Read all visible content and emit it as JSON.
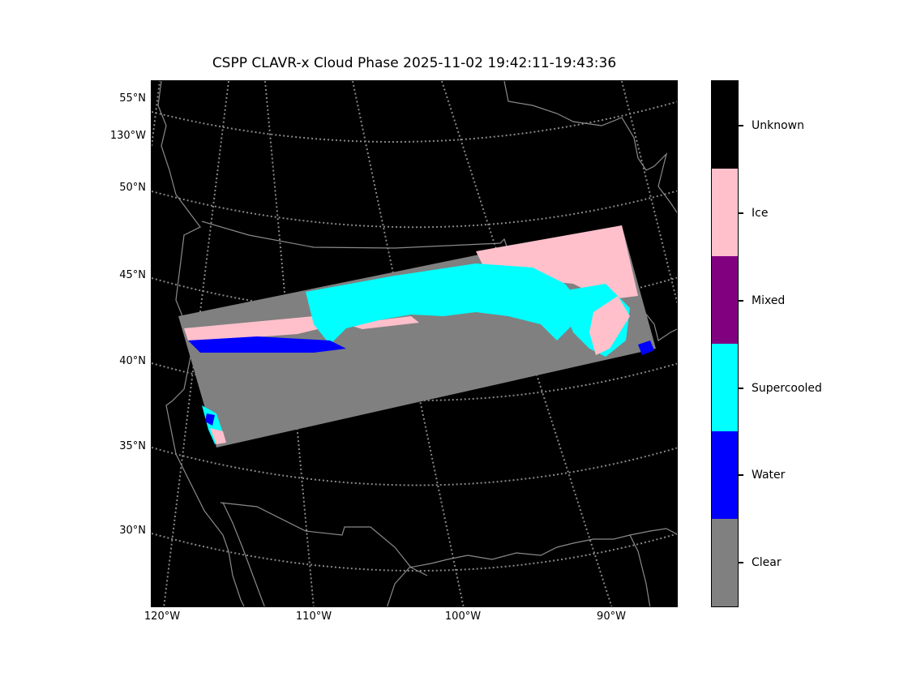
{
  "title": "CSPP CLAVR-x Cloud Phase 2025-11-02 19:42:11-19:43:36",
  "lat_labels": [
    "55°N",
    "130°W",
    "50°N",
    "45°N",
    "40°N",
    "35°N",
    "30°N"
  ],
  "lon_labels": [
    "120°W",
    "110°W",
    "100°W",
    "90°W"
  ],
  "legend": {
    "categories": [
      {
        "label": "Unknown",
        "color": "#000000"
      },
      {
        "label": "Ice",
        "color": "#ffc0cb"
      },
      {
        "label": "Mixed",
        "color": "#800080"
      },
      {
        "label": "Supercooled",
        "color": "#00ffff"
      },
      {
        "label": "Water",
        "color": "#0000ff"
      },
      {
        "label": "Clear",
        "color": "#808080"
      }
    ]
  },
  "colors": {
    "background": "#000000",
    "graticule": "#808080",
    "coastline": "#808080"
  }
}
